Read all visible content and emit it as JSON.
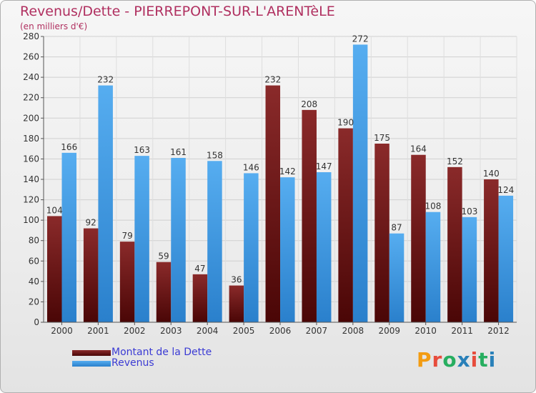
{
  "title": "Revenus/Dette - PIERREPONT-SUR-L'ARENTèLE",
  "subtitle": "(en milliers d'€)",
  "logo": {
    "text": "Proxiti",
    "letters": [
      {
        "ch": "P",
        "color": "#f39c12"
      },
      {
        "ch": "r",
        "color": "#e74c3c"
      },
      {
        "ch": "o",
        "color": "#27ae60"
      },
      {
        "ch": "x",
        "color": "#2980b9"
      },
      {
        "ch": "i",
        "color": "#e74c3c"
      },
      {
        "ch": "t",
        "color": "#27ae60"
      },
      {
        "ch": "i",
        "color": "#2980b9"
      }
    ]
  },
  "colors": {
    "dette": "#7b1b1b",
    "revenus": "#3f9fe6",
    "title": "#b03060"
  },
  "chart_data": {
    "type": "bar",
    "title": "Revenus/Dette - PIERREPONT-SUR-L'ARENTèLE",
    "subtitle": "(en milliers d'€)",
    "categories": [
      "2000",
      "2001",
      "2002",
      "2003",
      "2004",
      "2005",
      "2006",
      "2007",
      "2008",
      "2009",
      "2010",
      "2011",
      "2012"
    ],
    "series": [
      {
        "name": "Montant de la Dette",
        "values": [
          104,
          92,
          79,
          59,
          47,
          36,
          232,
          208,
          190,
          175,
          164,
          152,
          140
        ]
      },
      {
        "name": "Revenus",
        "values": [
          166,
          232,
          163,
          161,
          158,
          146,
          142,
          147,
          272,
          87,
          108,
          103,
          124
        ]
      }
    ],
    "ylim": [
      0,
      280
    ],
    "yticks": [
      0,
      20,
      40,
      60,
      80,
      100,
      120,
      140,
      160,
      180,
      200,
      220,
      240,
      260,
      280
    ],
    "grid": true,
    "legend": "bottom-left"
  }
}
